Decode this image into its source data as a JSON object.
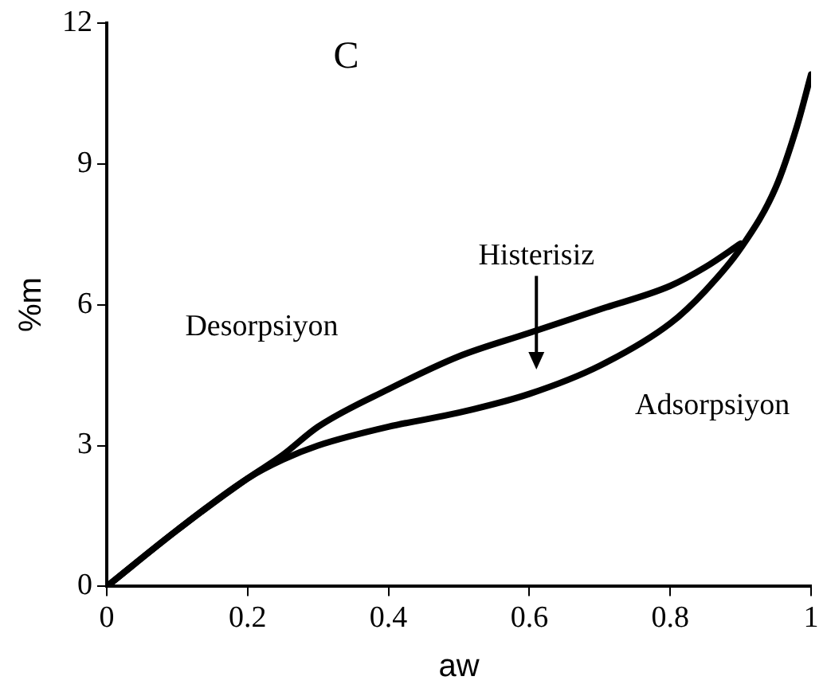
{
  "chart_data": {
    "type": "line",
    "title": "C",
    "xlabel": "aw",
    "ylabel": "%m",
    "xlim": [
      0,
      1
    ],
    "ylim": [
      0,
      12
    ],
    "xticks": [
      0,
      0.2,
      0.4,
      0.6,
      0.8,
      1
    ],
    "yticks": [
      0,
      3,
      6,
      9,
      12
    ],
    "grid": false,
    "legend": false,
    "marker": "none",
    "line_style": "solid",
    "series": [
      {
        "name": "Adsorpsiyon",
        "color": "#000000",
        "x": [
          0,
          0.1,
          0.2,
          0.25,
          0.3,
          0.4,
          0.5,
          0.6,
          0.7,
          0.8,
          0.85,
          0.9,
          0.95,
          0.98,
          1
        ],
        "values": [
          0,
          1.2,
          2.3,
          2.7,
          3.0,
          3.4,
          3.7,
          4.1,
          4.7,
          5.6,
          6.3,
          7.2,
          8.5,
          9.8,
          10.9
        ]
      },
      {
        "name": "Desorpsiyon",
        "color": "#000000",
        "x": [
          0,
          0.1,
          0.2,
          0.25,
          0.3,
          0.4,
          0.5,
          0.6,
          0.7,
          0.8,
          0.85,
          0.9
        ],
        "values": [
          0,
          1.2,
          2.3,
          2.8,
          3.4,
          4.2,
          4.9,
          5.4,
          5.9,
          6.4,
          6.8,
          7.3
        ]
      }
    ],
    "annotations": [
      "Histerisiz"
    ]
  }
}
